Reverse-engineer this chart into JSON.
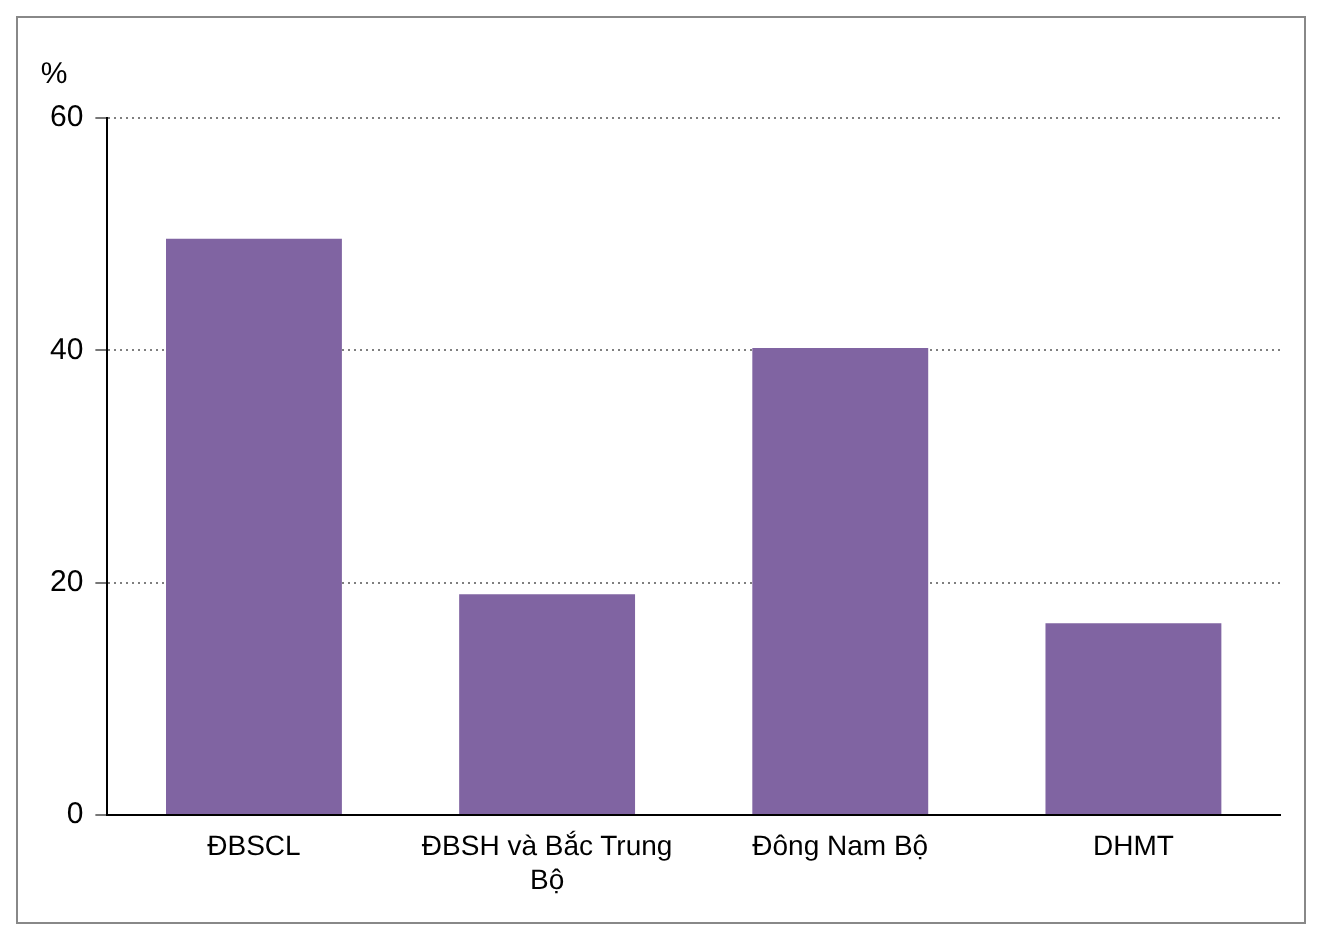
{
  "chart_data": {
    "type": "bar",
    "ylabel": "%",
    "categories": [
      "ĐBSCL",
      "ĐBSH và Bắc Trung Bộ",
      "Đông Nam Bộ",
      "DHMT"
    ],
    "values": [
      49.6,
      19.0,
      40.2,
      16.5
    ],
    "color": "#8064a2",
    "ylim": [
      0,
      60
    ],
    "yticks": [
      0,
      20,
      40,
      60
    ],
    "grid": "y",
    "legend": false
  }
}
